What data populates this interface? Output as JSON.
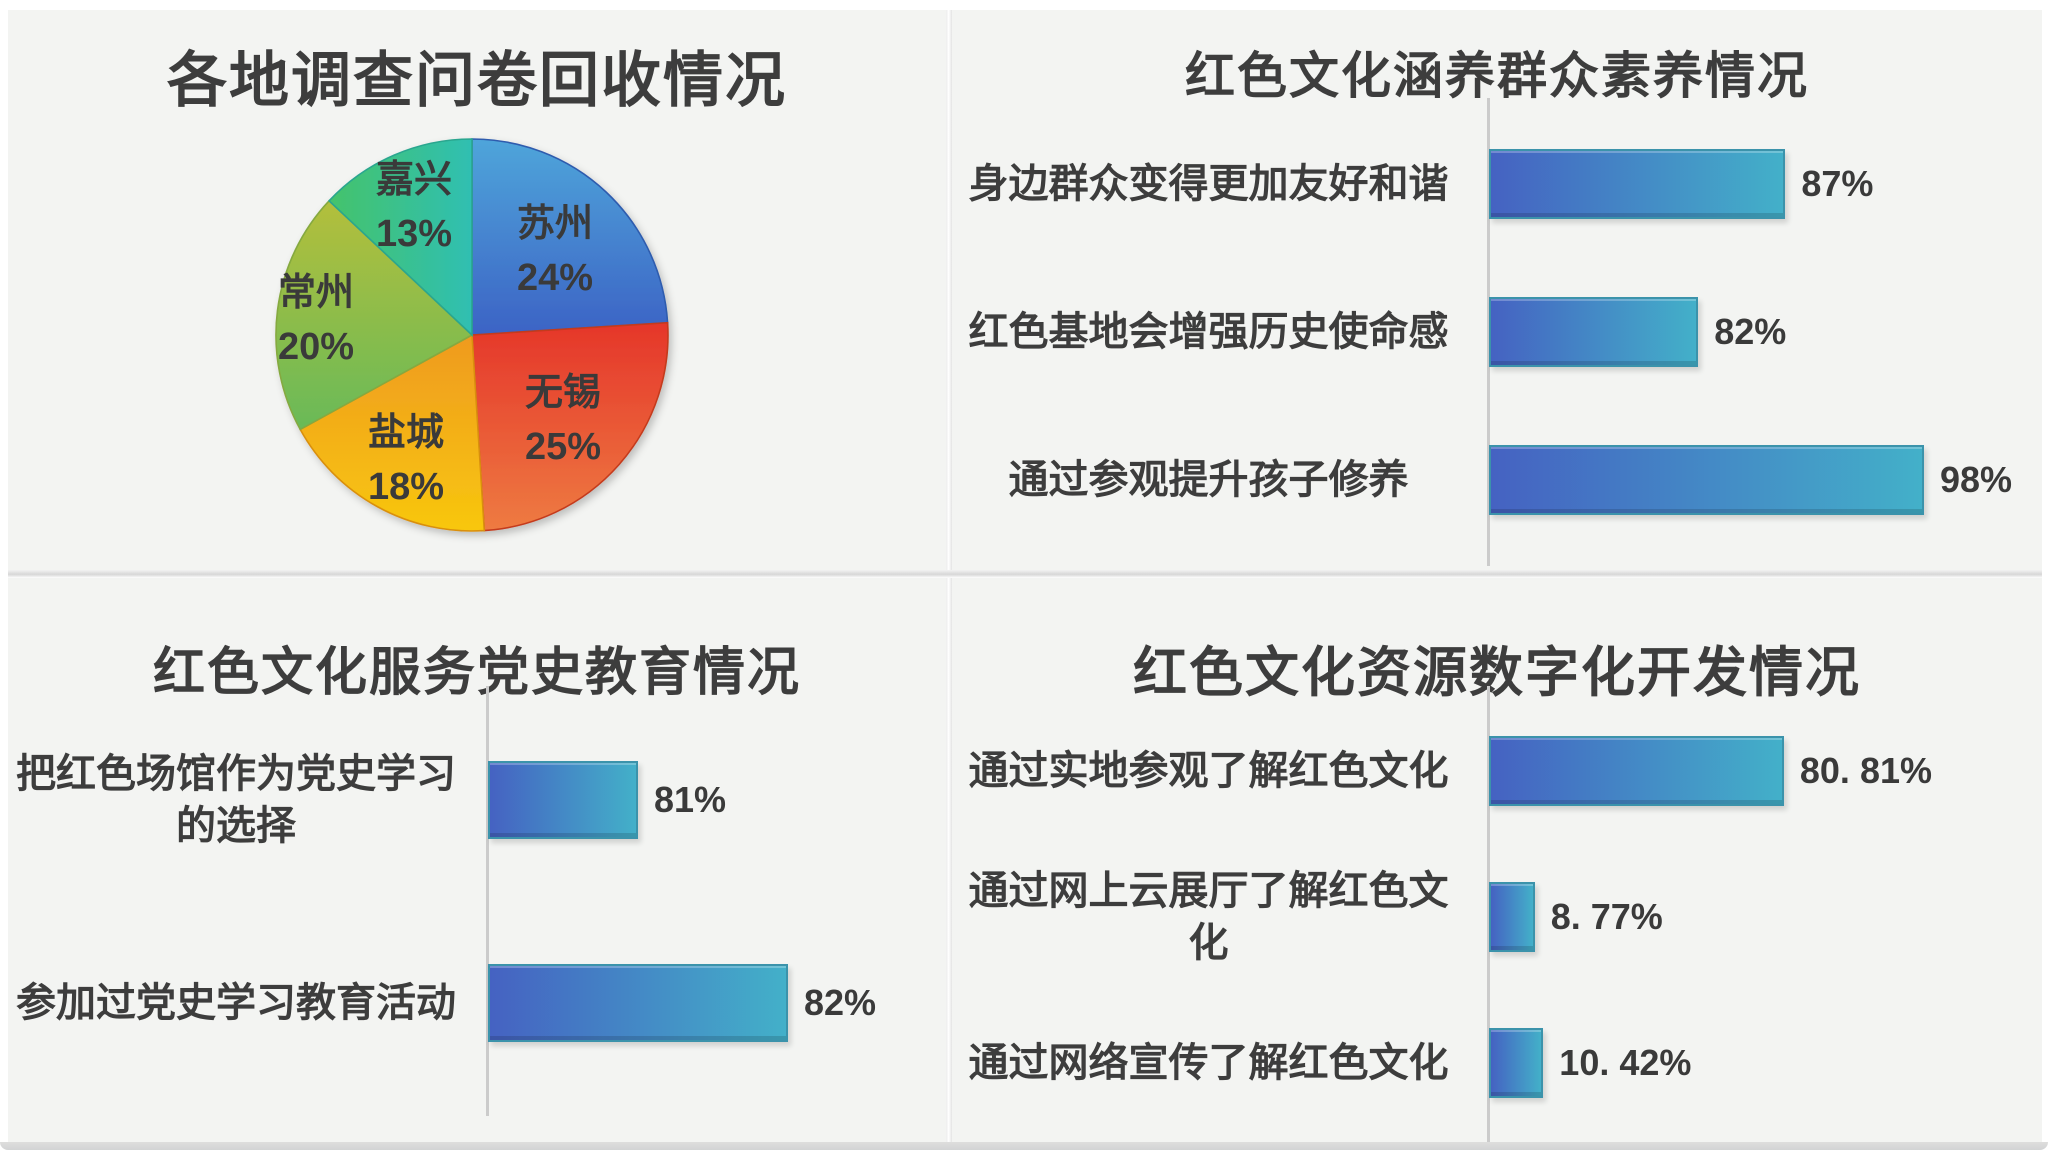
{
  "page": {
    "background": "#f3f4f2",
    "text_color": "#3d3d3d",
    "bar_gradient_start": "#4562c2",
    "bar_gradient_end": "#43b0c9",
    "axis_line_color": "#cbcbcb"
  },
  "chart_data": [
    {
      "type": "pie",
      "title": "各地调查问卷回收情况",
      "legend_position": "none",
      "labels_on_slices": true,
      "slices": [
        {
          "label": "苏州",
          "value": 24,
          "pct_label": "24%",
          "color_start": "#4fa5da",
          "color_end": "#3c63c5",
          "edge": "#2f5cae",
          "dir": "v"
        },
        {
          "label": "无锡",
          "value": 25,
          "pct_label": "25%",
          "color_start": "#e5362a",
          "color_end": "#ee7b42",
          "edge": "#c43a1e",
          "dir": "v"
        },
        {
          "label": "盐城",
          "value": 18,
          "pct_label": "18%",
          "color_start": "#ef9a20",
          "color_end": "#f8c70e",
          "edge": "#d98f10",
          "dir": "v"
        },
        {
          "label": "常州",
          "value": 20,
          "pct_label": "20%",
          "color_start": "#b3bf3c",
          "color_end": "#69ba58",
          "edge": "#85a93f",
          "dir": "v"
        },
        {
          "label": "嘉兴",
          "value": 13,
          "pct_label": "13%",
          "color_start": "#45c36b",
          "color_end": "#2fbfb2",
          "edge": "#2aa68f",
          "dir": "h"
        }
      ]
    },
    {
      "type": "bar",
      "title": "红色文化涵养群众素养情况",
      "orientation": "horizontal",
      "axis_min": 70,
      "axis_max": 100,
      "grid": false,
      "legend_position": "none",
      "bars": [
        {
          "label": "身边群众变得更加友好和谐",
          "value": 87,
          "value_label": "87%"
        },
        {
          "label": "红色基地会增强历史使命感",
          "value": 82,
          "value_label": "82%"
        },
        {
          "label": "通过参观提升孩子修养",
          "value": 98,
          "value_label": "98%"
        }
      ]
    },
    {
      "type": "bar",
      "title": "红色文化服务党史教育情况",
      "orientation": "horizontal",
      "axis_min": 80,
      "axis_max": 83,
      "grid": false,
      "legend_position": "none",
      "bars": [
        {
          "label": "把红色场馆作为党史学习\n的选择",
          "value": 81,
          "value_label": "81%"
        },
        {
          "label": "参加过党史学习教育活动",
          "value": 82,
          "value_label": "82%"
        }
      ]
    },
    {
      "type": "bar",
      "title": "红色文化资源数字化开发情况",
      "orientation": "horizontal",
      "axis_min": 0,
      "axis_max": 85,
      "grid": false,
      "legend_position": "none",
      "bars": [
        {
          "label": "通过实地参观了解红色文化",
          "value": 80.81,
          "value_label": "80. 81%"
        },
        {
          "label": "通过网上云展厅了解红色文\n化",
          "value": 8.77,
          "value_label": "8. 77%"
        },
        {
          "label": "通过网络宣传了解红色文化",
          "value": 10.42,
          "value_label": "10. 42%"
        }
      ]
    }
  ]
}
